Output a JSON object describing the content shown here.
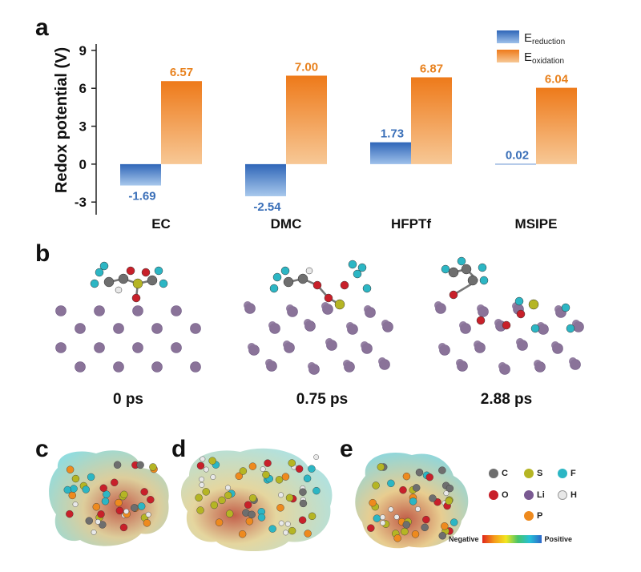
{
  "panels": {
    "a": "a",
    "b": "b",
    "c": "c",
    "d": "d",
    "e": "e"
  },
  "chart_data": {
    "type": "bar",
    "categories": [
      "EC",
      "DMC",
      "HFPTf",
      "MSIPE"
    ],
    "series": [
      {
        "name": "E_reduction",
        "values": [
          -1.69,
          -2.54,
          1.73,
          0.02
        ]
      },
      {
        "name": "E_oxidation",
        "values": [
          6.57,
          7.0,
          6.87,
          6.04
        ]
      }
    ],
    "data_labels": {
      "reduction": [
        "-1.69",
        "-2.54",
        "1.73",
        "0.02"
      ],
      "oxidation": [
        "6.57",
        "7.00",
        "6.87",
        "6.04"
      ]
    },
    "ylabel": "Redox potential (V)",
    "yticks": [
      "9",
      "6",
      "3",
      "0",
      "-3"
    ],
    "ylim": [
      -4,
      9.5
    ],
    "legend_position": "top-right",
    "legend": {
      "reduction_main": "E",
      "reduction_sub": "reduction",
      "oxidation_main": "E",
      "oxidation_sub": "oxidation"
    },
    "colors": {
      "reduction": "#3f78c4",
      "oxidation": "#f08a2c",
      "reduction_label": "#3a6fb8",
      "oxidation_label": "#e8821f"
    }
  },
  "snapshots": [
    "0 ps",
    "0.75 ps",
    "2.88 ps"
  ],
  "atom_legend": [
    {
      "symbol": "C",
      "color": "#6e6e6e"
    },
    {
      "symbol": "S",
      "color": "#b5b524"
    },
    {
      "symbol": "F",
      "color": "#2cb6c4"
    },
    {
      "symbol": "O",
      "color": "#c8202a"
    },
    {
      "symbol": "Li",
      "color": "#7a5a92"
    },
    {
      "symbol": "H",
      "color": "#e8e8e8"
    },
    {
      "symbol": "P",
      "color": "#ee8a1e"
    }
  ],
  "colorbar": {
    "negative": "Negative",
    "positive": "Positive"
  }
}
